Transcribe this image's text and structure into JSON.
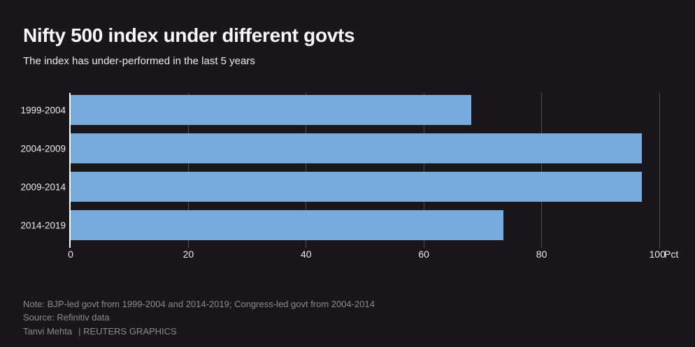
{
  "chart_data": {
    "type": "bar",
    "orientation": "horizontal",
    "title": "Nifty 500 index under different govts",
    "subtitle": "The index has under-performed in the last 5 years",
    "categories": [
      "1999-2004",
      "2004-2009",
      "2009-2014",
      "2014-2019"
    ],
    "values": [
      68,
      97,
      97,
      73.5
    ],
    "xlabel": "Pct",
    "xticks": [
      0,
      20,
      40,
      60,
      80,
      100
    ],
    "xlim": [
      0,
      106
    ],
    "grid": true,
    "legend": false
  },
  "footer": {
    "note": "Note: BJP-led govt from 1999-2004 and 2014-2019; Congress-led govt from 2004-2014",
    "source": "Source: Refinitiv data",
    "byline": "Tanvi Mehta",
    "credit": "| REUTERS GRAPHICS"
  },
  "colors": {
    "background": "#19171c",
    "bar": "#76abdc",
    "grid": "#4e4e51",
    "axis": "#ffffff",
    "text": "#e9e9e9",
    "muted": "#8b8b8b"
  }
}
